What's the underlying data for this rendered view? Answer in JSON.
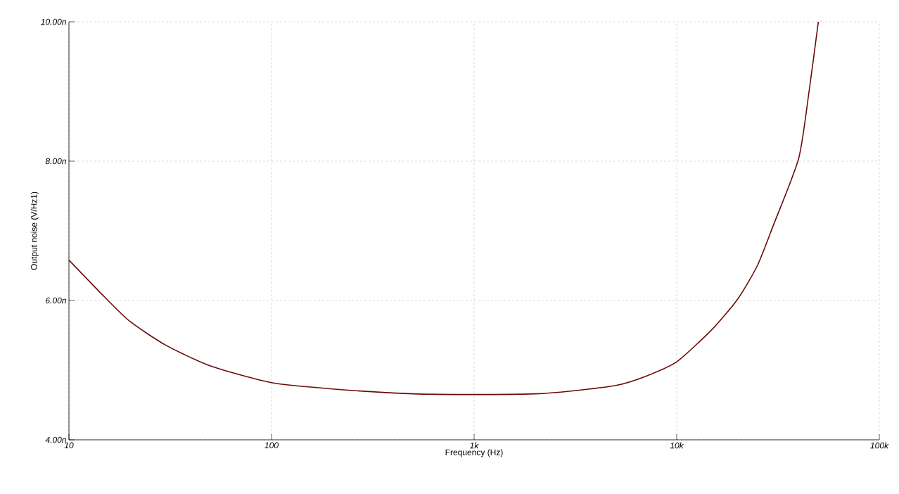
{
  "chart_data": {
    "type": "line",
    "xlabel": "Frequency (Hz)",
    "ylabel": "Output noise (V/Hz1)",
    "log": "x",
    "grid": true,
    "xlim": [
      10,
      100000
    ],
    "ylim": [
      4,
      10
    ],
    "xticks": [
      10,
      100,
      {
        "value": 1000,
        "label": "1k"
      },
      {
        "value": 10000,
        "label": "10k"
      },
      {
        "value": 100000,
        "label": "100k"
      }
    ],
    "yticks": [
      {
        "value": 4,
        "label": "4.00n"
      },
      {
        "value": 6,
        "label": "6.00n"
      },
      {
        "value": 8,
        "label": "8.00n"
      },
      {
        "value": 10,
        "label": "10.00n"
      }
    ],
    "series": [
      {
        "color": "#6b0a0a",
        "x": [
          10,
          15,
          20,
          30,
          50,
          100,
          200,
          500,
          1000,
          2000,
          3000,
          5000,
          7000,
          10000,
          15000,
          20000,
          25000,
          30000,
          40000,
          45000,
          50000
        ],
        "values": [
          6.58,
          6.05,
          5.7,
          5.36,
          5.06,
          4.82,
          4.73,
          4.66,
          4.65,
          4.66,
          4.7,
          4.78,
          4.91,
          5.12,
          5.59,
          6.02,
          6.5,
          7.08,
          8.04,
          9.0,
          10.0
        ]
      }
    ]
  }
}
